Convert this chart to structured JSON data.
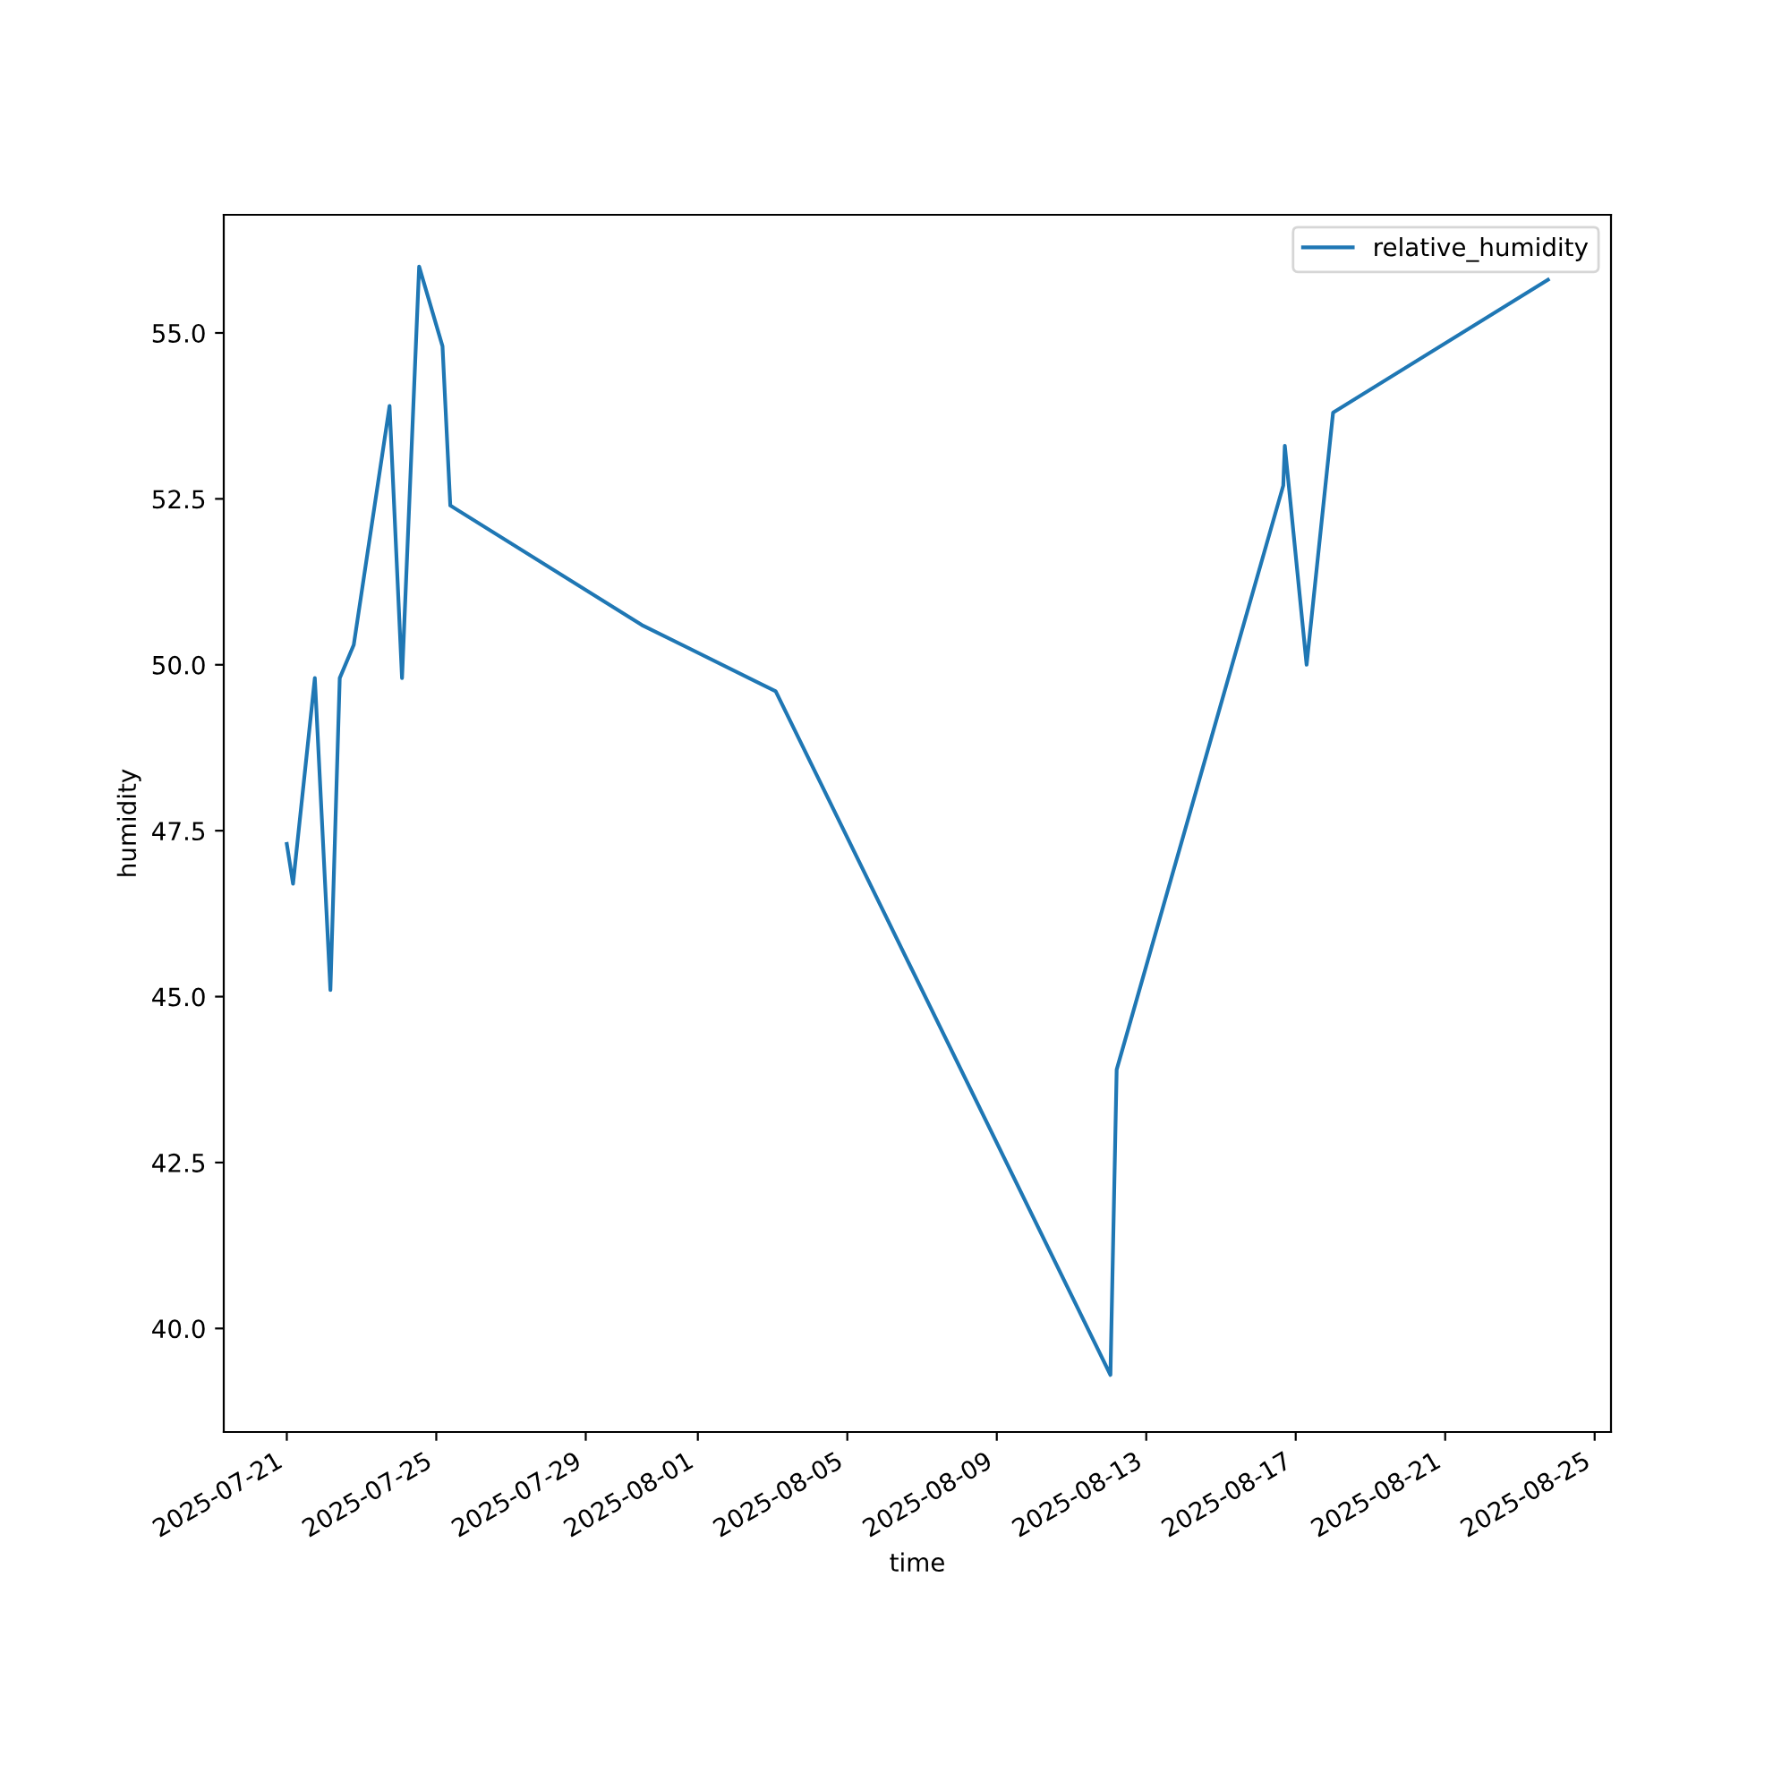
{
  "chart_data": {
    "type": "line",
    "xlabel": "time",
    "ylabel": "humidity",
    "x": [
      "2025-07-21T00:00",
      "2025-07-21T04:00",
      "2025-07-21T18:00",
      "2025-07-22T04:00",
      "2025-07-22T10:00",
      "2025-07-22T19:00",
      "2025-07-23T18:00",
      "2025-07-24T02:00",
      "2025-07-24T13:00",
      "2025-07-25T04:00",
      "2025-07-25T09:00",
      "2025-07-30T12:00",
      "2025-08-03T02:00",
      "2025-08-12T01:00",
      "2025-08-12T05:00",
      "2025-08-16T16:00",
      "2025-08-16T17:00",
      "2025-08-17T07:00",
      "2025-08-18T00:00",
      "2025-08-23T18:00"
    ],
    "series": [
      {
        "name": "relative_humidity",
        "color": "#1f77b4",
        "values": [
          47.3,
          46.7,
          49.8,
          45.1,
          49.8,
          50.3,
          53.9,
          49.8,
          56.0,
          54.8,
          52.4,
          50.6,
          49.6,
          39.3,
          43.9,
          52.7,
          53.3,
          50.0,
          53.8,
          55.8
        ]
      }
    ],
    "xlim": [
      "2025-07-19T07:30",
      "2025-08-25T10:30"
    ],
    "xticks": [
      "2025-07-21",
      "2025-07-25",
      "2025-07-29",
      "2025-08-01",
      "2025-08-05",
      "2025-08-09",
      "2025-08-13",
      "2025-08-17",
      "2025-08-21",
      "2025-08-25"
    ],
    "ylim": [
      38.44,
      56.78
    ],
    "yticks": [
      {
        "value": 40,
        "label": "40.0"
      },
      {
        "value": 42.5,
        "label": "42.5"
      },
      {
        "value": 45,
        "label": "45.0"
      },
      {
        "value": 47.5,
        "label": "47.5"
      },
      {
        "value": 50,
        "label": "50.0"
      },
      {
        "value": 52.5,
        "label": "52.5"
      },
      {
        "value": 55,
        "label": "55.0"
      }
    ],
    "grid": false,
    "legend": "top right",
    "line_style": "solid"
  }
}
